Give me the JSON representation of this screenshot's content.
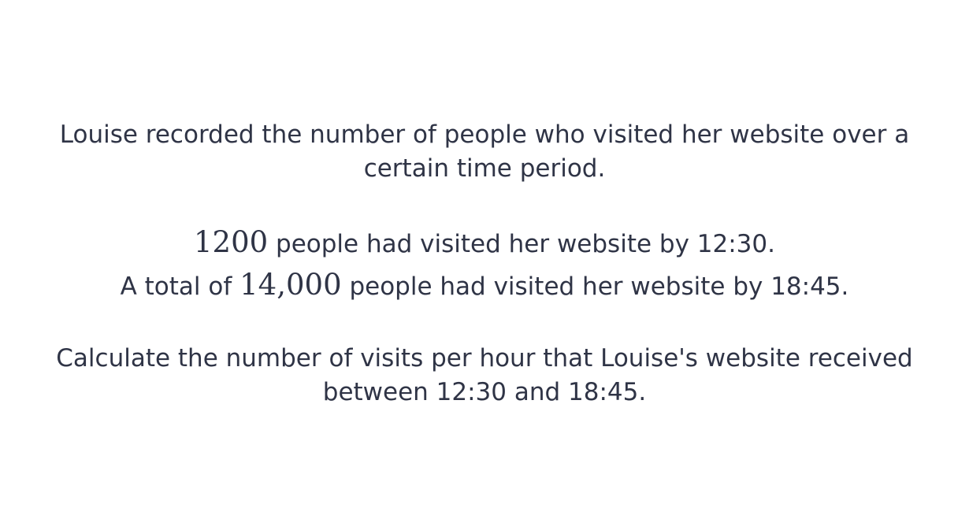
{
  "question": {
    "intro": "Louise recorded the number of people who visited her website over a certain time period.",
    "fact1": {
      "value": "1200",
      "text": " people had visited her website by 12:30."
    },
    "fact2": {
      "prefix": "A total of ",
      "value": "14,000",
      "text": " people had visited her website by 18:45."
    },
    "task": "Calculate the number of visits per hour that Louise's website received between 12:30 and 18:45."
  },
  "colors": {
    "text": "#2f3446",
    "background": "#ffffff"
  }
}
